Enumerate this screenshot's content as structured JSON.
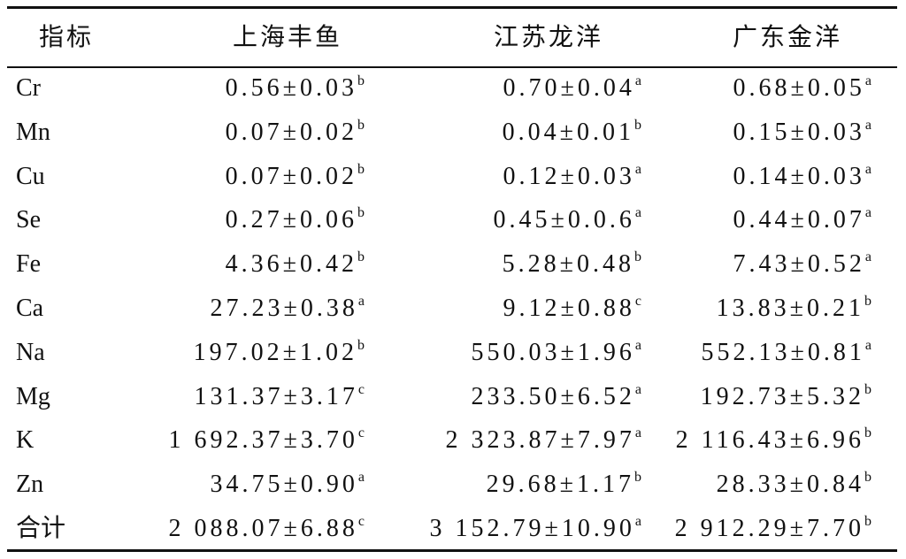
{
  "table": {
    "header": [
      "指标",
      "上海丰鱼",
      "江苏龙洋",
      "广东金洋"
    ],
    "rows": [
      {
        "label": "Cr",
        "cells": [
          {
            "value": "0.56±0.03",
            "sup": "b"
          },
          {
            "value": "0.70±0.04",
            "sup": "a"
          },
          {
            "value": "0.68±0.05",
            "sup": "a"
          }
        ]
      },
      {
        "label": "Mn",
        "cells": [
          {
            "value": "0.07±0.02",
            "sup": "b"
          },
          {
            "value": "0.04±0.01",
            "sup": "b"
          },
          {
            "value": "0.15±0.03",
            "sup": "a"
          }
        ]
      },
      {
        "label": "Cu",
        "cells": [
          {
            "value": "0.07±0.02",
            "sup": "b"
          },
          {
            "value": "0.12±0.03",
            "sup": "a"
          },
          {
            "value": "0.14±0.03",
            "sup": "a"
          }
        ]
      },
      {
        "label": "Se",
        "cells": [
          {
            "value": "0.27±0.06",
            "sup": "b"
          },
          {
            "value": "0.45±0.0.6",
            "sup": "a"
          },
          {
            "value": "0.44±0.07",
            "sup": "a"
          }
        ]
      },
      {
        "label": "Fe",
        "cells": [
          {
            "value": "4.36±0.42",
            "sup": "b"
          },
          {
            "value": "5.28±0.48",
            "sup": "b"
          },
          {
            "value": "7.43±0.52",
            "sup": "a"
          }
        ]
      },
      {
        "label": "Ca",
        "cells": [
          {
            "value": "27.23±0.38",
            "sup": "a"
          },
          {
            "value": "9.12±0.88",
            "sup": "c"
          },
          {
            "value": "13.83±0.21",
            "sup": "b"
          }
        ]
      },
      {
        "label": "Na",
        "cells": [
          {
            "value": "197.02±1.02",
            "sup": "b"
          },
          {
            "value": "550.03±1.96",
            "sup": "a"
          },
          {
            "value": "552.13±0.81",
            "sup": "a"
          }
        ]
      },
      {
        "label": "Mg",
        "cells": [
          {
            "value": "131.37±3.17",
            "sup": "c"
          },
          {
            "value": "233.50±6.52",
            "sup": "a"
          },
          {
            "value": "192.73±5.32",
            "sup": "b"
          }
        ]
      },
      {
        "label": "K",
        "cells": [
          {
            "value": "1 692.37±3.70",
            "sup": "c"
          },
          {
            "value": "2 323.87±7.97",
            "sup": "a"
          },
          {
            "value": "2 116.43±6.96",
            "sup": "b"
          }
        ]
      },
      {
        "label": "Zn",
        "cells": [
          {
            "value": "34.75±0.90",
            "sup": "a"
          },
          {
            "value": "29.68±1.17",
            "sup": "b"
          },
          {
            "value": "28.33±0.84",
            "sup": "b"
          }
        ]
      },
      {
        "label": "合计",
        "cells": [
          {
            "value": "2 088.07±6.88",
            "sup": "c"
          },
          {
            "value": "3 152.79±10.90",
            "sup": "a"
          },
          {
            "value": "2 912.29±7.70",
            "sup": "b"
          }
        ]
      }
    ]
  }
}
